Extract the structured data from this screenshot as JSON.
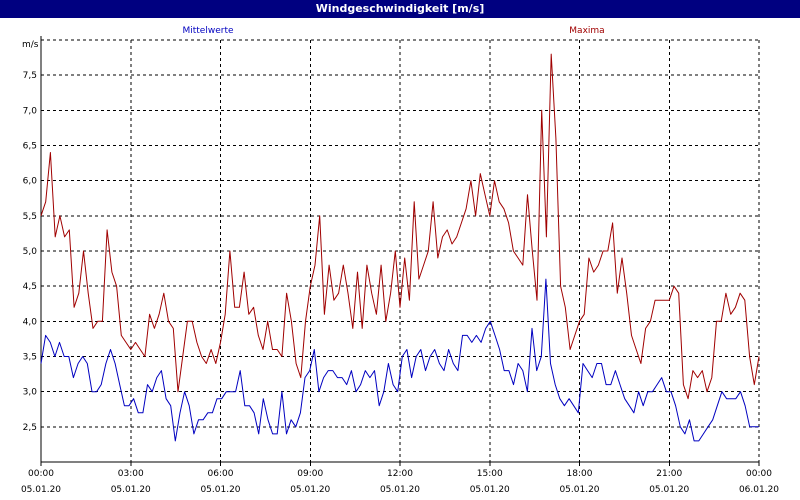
{
  "window": {
    "title": "Windgeschwindigkeit [m/s]"
  },
  "colors": {
    "title_bar": "#000080",
    "mittelwerte": "#0000c0",
    "maxima": "#a00000",
    "grid": "#000000",
    "axis": "#000000"
  },
  "chart_data": {
    "type": "line",
    "title": "Windgeschwindigkeit [m/s]",
    "ylabel": "m/s",
    "xlabel": "",
    "ylim": [
      2.0,
      8.0
    ],
    "yticks": [
      2.5,
      3.0,
      3.5,
      4.0,
      4.5,
      5.0,
      5.5,
      6.0,
      6.5,
      7.0,
      7.5
    ],
    "ytick_labels": [
      "2,5",
      "3,0",
      "3,5",
      "4,0",
      "4,5",
      "5,0",
      "5,5",
      "6,0",
      "6,5",
      "7,0",
      "7,5"
    ],
    "xlim_hours": [
      0,
      24
    ],
    "xticks": [
      {
        "hour": 0,
        "time": "00:00",
        "date": "05.01.20"
      },
      {
        "hour": 3,
        "time": "03:00",
        "date": "05.01.20"
      },
      {
        "hour": 6,
        "time": "06:00",
        "date": "05.01.20"
      },
      {
        "hour": 9,
        "time": "09:00",
        "date": "05.01.20"
      },
      {
        "hour": 12,
        "time": "12:00",
        "date": "05.01.20"
      },
      {
        "hour": 15,
        "time": "15:00",
        "date": "05.01.20"
      },
      {
        "hour": 18,
        "time": "18:00",
        "date": "05.01.20"
      },
      {
        "hour": 21,
        "time": "21:00",
        "date": "05.01.20"
      },
      {
        "hour": 24,
        "time": "00:00",
        "date": "06.01.20"
      }
    ],
    "grid": true,
    "step_hours": 0.1666667,
    "series": [
      {
        "name": "Mittelwerte",
        "color": "#0000c0",
        "values": [
          3.4,
          3.8,
          3.7,
          3.5,
          3.7,
          3.5,
          3.5,
          3.2,
          3.4,
          3.5,
          3.4,
          3.0,
          3.0,
          3.1,
          3.4,
          3.6,
          3.4,
          3.1,
          2.8,
          2.8,
          2.9,
          2.7,
          2.7,
          3.1,
          3.0,
          3.2,
          3.3,
          2.9,
          2.8,
          2.3,
          2.7,
          3.0,
          2.8,
          2.4,
          2.6,
          2.6,
          2.7,
          2.7,
          2.9,
          2.9,
          3.0,
          3.0,
          3.0,
          3.3,
          2.8,
          2.8,
          2.7,
          2.4,
          2.9,
          2.6,
          2.4,
          2.4,
          3.0,
          2.4,
          2.6,
          2.5,
          2.7,
          3.2,
          3.3,
          3.6,
          3.0,
          3.2,
          3.3,
          3.3,
          3.2,
          3.2,
          3.1,
          3.3,
          3.0,
          3.1,
          3.3,
          3.2,
          3.3,
          2.8,
          3.0,
          3.4,
          3.1,
          3.0,
          3.5,
          3.6,
          3.2,
          3.5,
          3.6,
          3.3,
          3.5,
          3.6,
          3.4,
          3.3,
          3.6,
          3.4,
          3.3,
          3.8,
          3.8,
          3.7,
          3.8,
          3.7,
          3.9,
          4.0,
          3.8,
          3.6,
          3.3,
          3.3,
          3.1,
          3.4,
          3.3,
          3.0,
          3.9,
          3.3,
          3.5,
          4.6,
          3.4,
          3.1,
          2.9,
          2.8,
          2.9,
          2.8,
          2.7,
          3.4,
          3.3,
          3.2,
          3.4,
          3.4,
          3.1,
          3.1,
          3.3,
          3.1,
          2.9,
          2.8,
          2.7,
          3.0,
          2.8,
          3.0,
          3.0,
          3.1,
          3.2,
          3.0,
          3.0,
          2.8,
          2.5,
          2.4,
          2.6,
          2.3,
          2.3,
          2.4,
          2.5,
          2.6,
          2.8,
          3.0,
          2.9,
          2.9,
          2.9,
          3.0,
          2.8,
          2.5,
          2.5,
          2.5
        ]
      },
      {
        "name": "Maxima",
        "color": "#a00000",
        "values": [
          5.5,
          5.7,
          6.4,
          5.2,
          5.5,
          5.2,
          5.3,
          4.2,
          4.4,
          5.0,
          4.4,
          3.9,
          4.0,
          4.0,
          5.3,
          4.7,
          4.5,
          3.8,
          3.7,
          3.6,
          3.7,
          3.6,
          3.5,
          4.1,
          3.9,
          4.1,
          4.4,
          4.0,
          3.9,
          3.0,
          3.5,
          4.0,
          4.0,
          3.7,
          3.5,
          3.4,
          3.6,
          3.4,
          3.7,
          4.1,
          5.0,
          4.2,
          4.2,
          4.7,
          4.1,
          4.2,
          3.8,
          3.6,
          4.0,
          3.6,
          3.6,
          3.5,
          4.4,
          4.0,
          3.4,
          3.2,
          4.0,
          4.5,
          4.8,
          5.5,
          4.1,
          4.8,
          4.3,
          4.4,
          4.8,
          4.4,
          3.9,
          4.7,
          3.9,
          4.8,
          4.4,
          4.1,
          4.8,
          4.0,
          4.4,
          5.0,
          4.2,
          4.9,
          4.3,
          5.7,
          4.6,
          4.8,
          5.0,
          5.7,
          4.9,
          5.2,
          5.3,
          5.1,
          5.2,
          5.4,
          5.6,
          6.0,
          5.5,
          6.1,
          5.8,
          5.5,
          6.0,
          5.7,
          5.6,
          5.4,
          5.0,
          4.9,
          4.8,
          5.8,
          5.0,
          4.3,
          7.0,
          5.2,
          7.8,
          6.6,
          4.5,
          4.2,
          3.6,
          3.8,
          4.0,
          4.1,
          4.9,
          4.7,
          4.8,
          5.0,
          5.0,
          5.4,
          4.4,
          4.9,
          4.4,
          3.8,
          3.6,
          3.4,
          3.9,
          4.0,
          4.3,
          4.3,
          4.3,
          4.3,
          4.5,
          4.4,
          3.1,
          2.9,
          3.3,
          3.2,
          3.3,
          3.0,
          3.2,
          4.0,
          4.0,
          4.4,
          4.1,
          4.2,
          4.4,
          4.3,
          3.5,
          3.1,
          3.5
        ]
      }
    ]
  }
}
